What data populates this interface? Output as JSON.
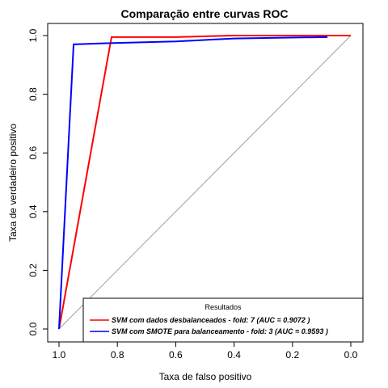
{
  "chart_data": {
    "type": "line",
    "title": "Comparação entre curvas ROC",
    "xlabel": "Taxa de falso positivo",
    "ylabel": "Taxa de verdadeiro positivo",
    "xlim": [
      1.0,
      0.0
    ],
    "ylim": [
      0.0,
      1.0
    ],
    "x_reversed": true,
    "x_ticks": [
      1.0,
      0.8,
      0.6,
      0.4,
      0.2,
      0.0
    ],
    "x_tick_labels": [
      "1.0",
      "0.8",
      "0.6",
      "0.4",
      "0.2",
      "0.0"
    ],
    "y_ticks": [
      0.0,
      0.2,
      0.4,
      0.6,
      0.8,
      1.0
    ],
    "y_tick_labels": [
      "0.0",
      "0.2",
      "0.4",
      "0.6",
      "0.8",
      "1.0"
    ],
    "grid": false,
    "legend_position": "bottom-right",
    "legend_title": "Resultados",
    "reference_line": {
      "x": [
        1.0,
        0.0
      ],
      "y": [
        0.0,
        1.0
      ],
      "color": "#a0a0a0"
    },
    "series": [
      {
        "name": "SVM com dados desbalanceados - fold: 7 (AUC = 0.9072 )",
        "color": "#ff0000",
        "x": [
          1.0,
          0.82,
          0.6,
          0.4,
          0.0
        ],
        "y": [
          0.0,
          0.995,
          0.995,
          1.0,
          1.0
        ]
      },
      {
        "name": "SVM com SMOTE para balanceamento - fold: 3 (AUC = 0.9593 )",
        "color": "#0000ff",
        "x": [
          1.0,
          0.95,
          0.8,
          0.6,
          0.4,
          0.08
        ],
        "y": [
          0.0,
          0.97,
          0.975,
          0.98,
          0.99,
          0.995
        ]
      }
    ]
  }
}
